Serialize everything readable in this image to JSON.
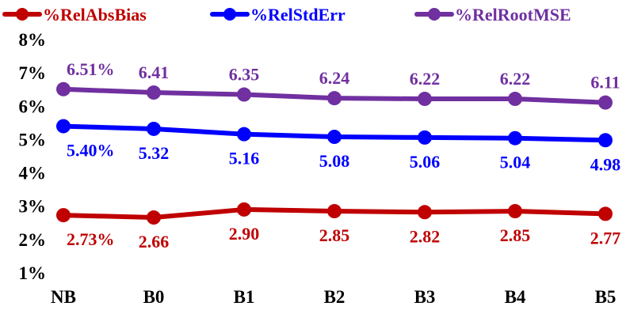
{
  "chart_data": {
    "type": "line",
    "categories": [
      "NB",
      "B0",
      "B1",
      "B2",
      "B3",
      "B4",
      "B5"
    ],
    "ylim": [
      1,
      8
    ],
    "yticks": [
      "1%",
      "2%",
      "3%",
      "4%",
      "5%",
      "6%",
      "7%",
      "8%"
    ],
    "ytick_values": [
      1,
      2,
      3,
      4,
      5,
      6,
      7,
      8
    ],
    "grid": false,
    "legend_position": "top",
    "series": [
      {
        "name": "%RelAbsBias",
        "color": "#c00000",
        "values": [
          2.73,
          2.66,
          2.9,
          2.85,
          2.82,
          2.85,
          2.77
        ],
        "labels": [
          "2.73%",
          "2.66",
          "2.90",
          "2.85",
          "2.82",
          "2.85",
          "2.77"
        ],
        "label_position": "below"
      },
      {
        "name": "%RelStdErr",
        "color": "#0000ff",
        "values": [
          5.4,
          5.32,
          5.16,
          5.08,
          5.06,
          5.04,
          4.98
        ],
        "labels": [
          "5.40%",
          "5.32",
          "5.16",
          "5.08",
          "5.06",
          "5.04",
          "4.98"
        ],
        "label_position": "below"
      },
      {
        "name": "%RelRootMSE",
        "color": "#7030a0",
        "values": [
          6.51,
          6.41,
          6.35,
          6.24,
          6.22,
          6.22,
          6.11
        ],
        "labels": [
          "6.51%",
          "6.41",
          "6.35",
          "6.24",
          "6.22",
          "6.22",
          "6.11"
        ],
        "label_position": "above"
      }
    ]
  }
}
